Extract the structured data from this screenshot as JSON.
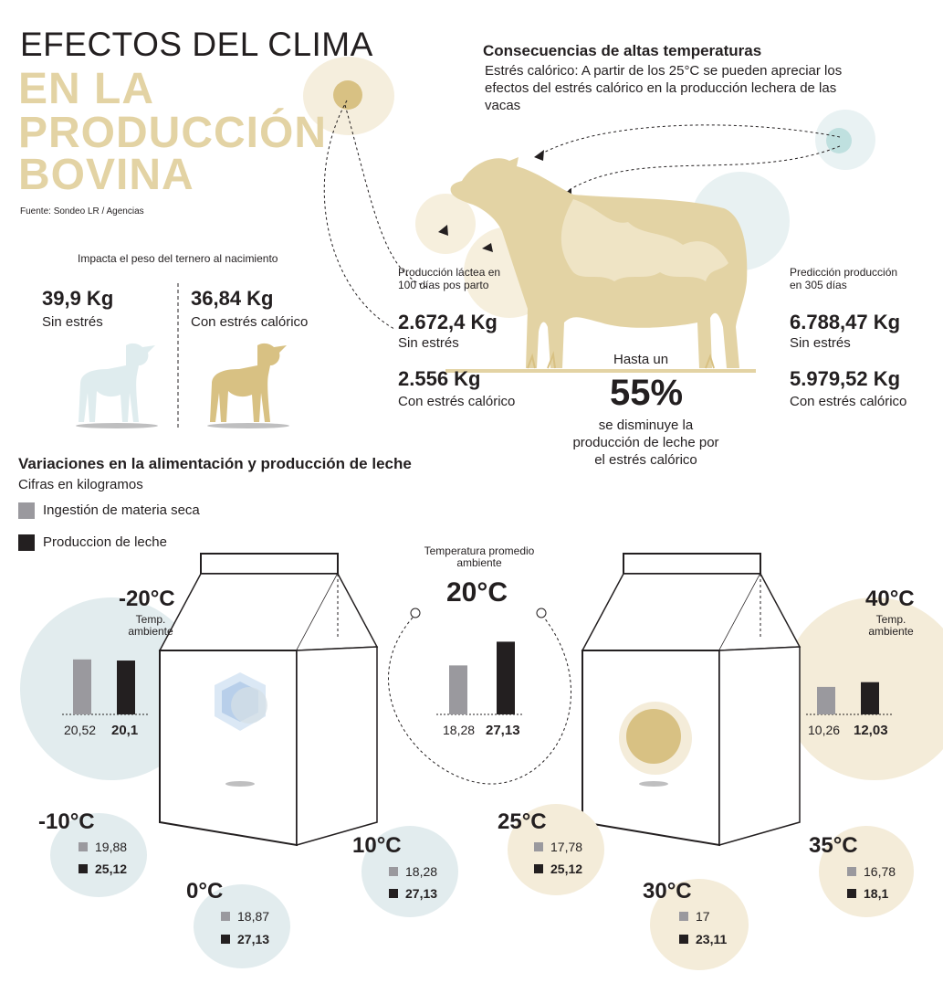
{
  "header": {
    "line1": "EFECTOS DEL CLIMA",
    "line2": "EN LA",
    "line3": "PRODUCCIÓN",
    "line4": "BOVINA",
    "source": "Fuente: Sondeo LR / Agencias"
  },
  "consequences": {
    "title": "Consecuencias de altas temperaturas",
    "text": "Estrés calórico: A partir de los 25°C se pueden apreciar los efectos del estrés calórico en la producción lechera de las vacas"
  },
  "calf": {
    "title": "Impacta el peso del ternero al nacimiento",
    "left_value": "39,9 Kg",
    "left_label": "Sin estrés",
    "right_value": "36,84 Kg",
    "right_label": "Con estrés calórico"
  },
  "milk100": {
    "label": "Producción láctea en 100 días pos parto",
    "v1": "2.672,4 Kg",
    "l1": "Sin estrés",
    "v2": "2.556 Kg",
    "l2": "Con estrés calórico"
  },
  "milk305": {
    "label": "Predicción producción en 305 días",
    "v1": "6.788,47 Kg",
    "l1": "Sin estrés",
    "v2": "5.979,52 Kg",
    "l2": "Con estrés calórico"
  },
  "reduction": {
    "pre": "Hasta un",
    "value": "55%",
    "post": "se disminuye la producción de leche por el estrés calórico"
  },
  "variations": {
    "title": "Variaciones en la alimentación y producción de leche",
    "subtitle": "Cifras en kilogramos",
    "legend_dry": "Ingestión de materia seca",
    "legend_milk": "Produccion de leche"
  },
  "colors": {
    "beige": "#e3d3a4",
    "cold": "#e2ecee",
    "warm": "#f4ecd9",
    "gray_bar": "#9a999e",
    "black_bar": "#231f20"
  },
  "temps": {
    "m20": {
      "temp": "-20°C",
      "sub": "Temp. ambiente",
      "dry": "20,52",
      "milk": "20,1"
    },
    "t20": {
      "pre": "Temperatura promedio ambiente",
      "temp": "20°C",
      "dry": "18,28",
      "milk": "27,13"
    },
    "t40": {
      "temp": "40°C",
      "sub": "Temp. ambiente",
      "dry": "10,26",
      "milk": "12,03"
    },
    "m10": {
      "temp": "-10°C",
      "dry": "19,88",
      "milk": "25,12"
    },
    "t0": {
      "temp": "0°C",
      "dry": "18,87",
      "milk": "27,13"
    },
    "t10": {
      "temp": "10°C",
      "dry": "18,28",
      "milk": "27,13"
    },
    "t25": {
      "temp": "25°C",
      "dry": "17,78",
      "milk": "25,12"
    },
    "t30": {
      "temp": "30°C",
      "dry": "17",
      "milk": "23,11"
    },
    "t35": {
      "temp": "35°C",
      "dry": "16,78",
      "milk": "18,1"
    }
  },
  "chart_data": [
    {
      "type": "bar",
      "title": "-20°C",
      "categories": [
        "Ingestión de materia seca",
        "Produccion de leche"
      ],
      "values": [
        20.52,
        20.1
      ]
    },
    {
      "type": "bar",
      "title": "20°C",
      "categories": [
        "Ingestión de materia seca",
        "Produccion de leche"
      ],
      "values": [
        18.28,
        27.13
      ]
    },
    {
      "type": "bar",
      "title": "40°C",
      "categories": [
        "Ingestión de materia seca",
        "Produccion de leche"
      ],
      "values": [
        10.26,
        12.03
      ]
    }
  ]
}
